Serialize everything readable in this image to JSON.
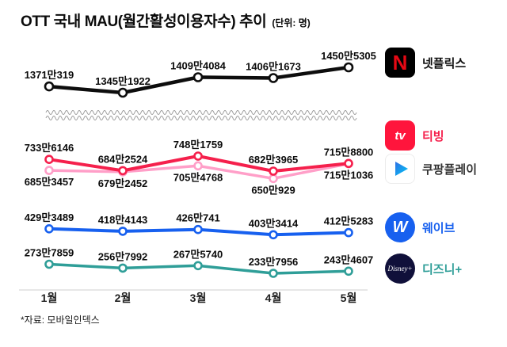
{
  "page": {
    "title": "OTT 국내 MAU(월간활성이용자수) 추이",
    "unit_note": "(단위: 명)",
    "source_note": "*자료: 모바일인덱스"
  },
  "chart_data": {
    "type": "line",
    "title": "OTT 국내 MAU(월간활성이용자수) 추이",
    "unit": "명",
    "categories": [
      "1월",
      "2월",
      "3월",
      "4월",
      "5월"
    ],
    "grid": false,
    "legend_position": "right",
    "axis_break_between": [
      "넷플릭스",
      "티빙"
    ],
    "series": [
      {
        "name": "넷플릭스",
        "color": "#0d0d0d",
        "scale": "upper",
        "label_position": "above",
        "line_width": 4.5,
        "marker_radius": 5,
        "values": [
          13710319,
          13451922,
          14094084,
          14061673,
          14505305
        ],
        "labels": [
          "1371만319",
          "1345만1922",
          "1409만4084",
          "1406만1673",
          "1450만5305"
        ]
      },
      {
        "name": "티빙",
        "color": "#f5204c",
        "scale": "lower",
        "label_position": "above",
        "line_width": 4,
        "marker_radius": 4.5,
        "values": [
          7336146,
          6842524,
          7481759,
          6823965,
          7158800
        ],
        "labels": [
          "733만6146",
          "684만2524",
          "748만1759",
          "682만3965",
          "715만8800"
        ]
      },
      {
        "name": "쿠팡플레이",
        "color": "#ff9fc8",
        "scale": "lower",
        "label_position": "below",
        "line_width": 3.5,
        "marker_radius": 4.5,
        "values": [
          6853457,
          6792452,
          7054768,
          6500929,
          7151036
        ],
        "labels": [
          "685만3457",
          "679만2452",
          "705만4768",
          "650만929",
          "715만1036"
        ]
      },
      {
        "name": "웨이브",
        "color": "#1760ef",
        "scale": "lower",
        "label_position": "above",
        "line_width": 4,
        "marker_radius": 4.5,
        "values": [
          4293489,
          4184143,
          4260741,
          4033414,
          4125283
        ],
        "labels": [
          "429만3489",
          "418만4143",
          "426만741",
          "403만3414",
          "412만5283"
        ]
      },
      {
        "name": "디즈니+",
        "color": "#2f9e98",
        "scale": "lower",
        "label_position": "above",
        "line_width": 3.5,
        "marker_radius": 4.5,
        "values": [
          2737859,
          2567992,
          2675740,
          2337956,
          2434607
        ],
        "labels": [
          "273만7859",
          "256만7992",
          "267만5740",
          "233만7956",
          "243만4607"
        ]
      }
    ],
    "draw_order": [
      2,
      1,
      0,
      3,
      4
    ]
  },
  "legend": {
    "items": [
      {
        "label": "넷플릭스",
        "label_color": "#111111",
        "icon": "netflix-logo",
        "icon_text": "N",
        "icon_bg": "#000000",
        "icon_fg": "#e50914"
      },
      {
        "label": "티빙",
        "label_color": "#f5204c",
        "icon": "tving-logo",
        "icon_text": "tv",
        "icon_bg": "#ff153c",
        "icon_fg": "#ffffff"
      },
      {
        "label": "쿠팡플레이",
        "label_color": "#333333",
        "icon": "coupangplay-logo",
        "icon_bg": "#ffffff"
      },
      {
        "label": "웨이브",
        "label_color": "#1760ef",
        "icon": "wavve-logo",
        "icon_text": "W",
        "icon_bg": "#1760ef",
        "icon_fg": "#ffffff"
      },
      {
        "label": "디즈니+",
        "label_color": "#2f9e98",
        "icon": "disneyplus-logo",
        "icon_text": "Disney+",
        "icon_bg": "#10103a",
        "icon_fg": "#ffffff"
      }
    ]
  }
}
